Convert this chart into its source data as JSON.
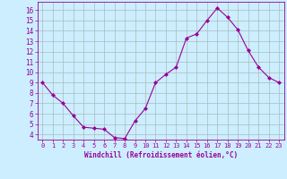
{
  "x": [
    0,
    1,
    2,
    3,
    4,
    5,
    6,
    7,
    8,
    9,
    10,
    11,
    12,
    13,
    14,
    15,
    16,
    17,
    18,
    19,
    20,
    21,
    22,
    23
  ],
  "y": [
    9.0,
    7.8,
    7.0,
    5.8,
    4.7,
    4.6,
    4.5,
    3.7,
    3.6,
    5.3,
    6.5,
    9.0,
    9.8,
    10.5,
    13.3,
    13.7,
    15.0,
    16.2,
    15.3,
    14.1,
    12.1,
    10.5,
    9.5,
    9.0
  ],
  "line_color": "#990099",
  "marker": "D",
  "marker_size": 2,
  "bg_color": "#cceeff",
  "grid_color": "#aabbbb",
  "xlabel": "Windchill (Refroidissement éolien,°C)",
  "xlabel_color": "#990099",
  "tick_color": "#990099",
  "ylim": [
    3.5,
    16.8
  ],
  "xlim": [
    -0.5,
    23.5
  ],
  "yticks": [
    4,
    5,
    6,
    7,
    8,
    9,
    10,
    11,
    12,
    13,
    14,
    15,
    16
  ],
  "xticks": [
    0,
    1,
    2,
    3,
    4,
    5,
    6,
    7,
    8,
    9,
    10,
    11,
    12,
    13,
    14,
    15,
    16,
    17,
    18,
    19,
    20,
    21,
    22,
    23
  ]
}
